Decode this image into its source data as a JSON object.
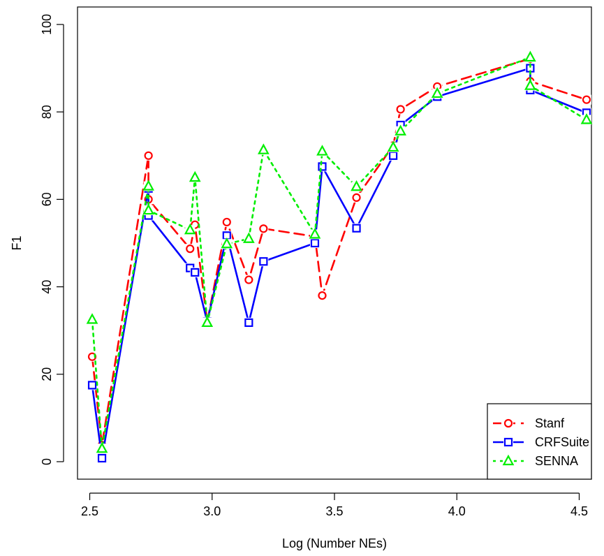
{
  "chart_data": {
    "type": "line",
    "xlabel": "Log (Number NEs)",
    "ylabel": "F1",
    "xlim": [
      2.45,
      4.55
    ],
    "ylim": [
      -4,
      104
    ],
    "x_ticks": [
      "2.5",
      "3.0",
      "3.5",
      "4.0",
      "4.5"
    ],
    "y_ticks": [
      "0",
      "20",
      "40",
      "60",
      "80",
      "100"
    ],
    "legend_position": "bottom-right",
    "series": [
      {
        "name": "Stanf",
        "color": "#ff0000",
        "line_style": "dashed",
        "marker": "circle",
        "points": [
          [
            2.51,
            24.0
          ],
          [
            2.55,
            3.8
          ],
          [
            2.74,
            70.0
          ],
          [
            2.74,
            60.0
          ],
          [
            2.91,
            48.7
          ],
          [
            2.93,
            54.2
          ],
          [
            2.98,
            32.0
          ],
          [
            3.06,
            54.8
          ],
          [
            3.15,
            41.6
          ],
          [
            3.21,
            53.3
          ],
          [
            3.42,
            51.5
          ],
          [
            3.45,
            38.0
          ],
          [
            3.59,
            60.4
          ],
          [
            3.74,
            72.3
          ],
          [
            3.77,
            80.6
          ],
          [
            3.92,
            85.8
          ],
          [
            4.3,
            92.2
          ],
          [
            4.3,
            87.0
          ],
          [
            4.53,
            82.8
          ]
        ]
      },
      {
        "name": "CRFSuite",
        "color": "#0000ff",
        "line_style": "solid",
        "marker": "square",
        "points": [
          [
            2.51,
            17.5
          ],
          [
            2.55,
            0.8
          ],
          [
            2.74,
            62.5
          ],
          [
            2.74,
            56.3
          ],
          [
            2.91,
            44.3
          ],
          [
            2.93,
            43.3
          ],
          [
            2.98,
            32.0
          ],
          [
            3.06,
            51.7
          ],
          [
            3.15,
            31.8
          ],
          [
            3.21,
            45.8
          ],
          [
            3.42,
            50.0
          ],
          [
            3.45,
            67.5
          ],
          [
            3.59,
            53.4
          ],
          [
            3.74,
            70.0
          ],
          [
            3.77,
            77.0
          ],
          [
            3.92,
            83.5
          ],
          [
            4.3,
            90.0
          ],
          [
            4.3,
            85.0
          ],
          [
            4.53,
            79.8
          ]
        ]
      },
      {
        "name": "SENNA",
        "color": "#00ee00",
        "line_style": "dotted",
        "marker": "triangle",
        "points": [
          [
            2.51,
            32.5
          ],
          [
            2.55,
            3.0
          ],
          [
            2.74,
            63.0
          ],
          [
            2.74,
            57.5
          ],
          [
            2.91,
            53.0
          ],
          [
            2.93,
            65.0
          ],
          [
            2.98,
            31.8
          ],
          [
            3.06,
            49.8
          ],
          [
            3.15,
            51.0
          ],
          [
            3.21,
            71.3
          ],
          [
            3.42,
            52.0
          ],
          [
            3.45,
            71.0
          ],
          [
            3.59,
            62.9
          ],
          [
            3.74,
            71.9
          ],
          [
            3.77,
            75.6
          ],
          [
            3.92,
            84.2
          ],
          [
            4.3,
            92.5
          ],
          [
            4.3,
            86.0
          ],
          [
            4.53,
            78.2
          ]
        ]
      }
    ]
  }
}
